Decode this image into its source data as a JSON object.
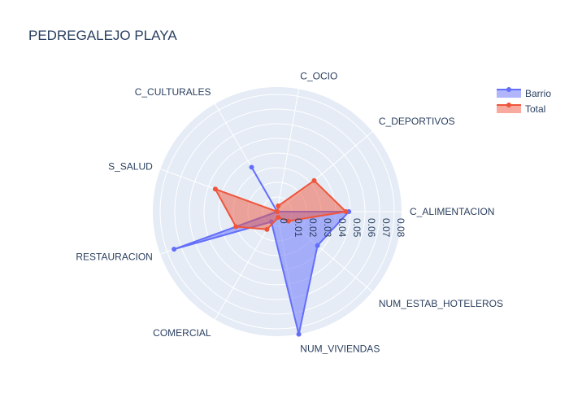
{
  "chart_data": {
    "type": "radar",
    "title": "PEDREGALEJO PLAYA",
    "axes": [
      "C_ALIMENTACION",
      "C_DEPORTIVOS",
      "C_OCIO",
      "C_CULTURALES",
      "S_SALUD",
      "RESTAURACION",
      "COMERCIAL",
      "NUM_VIVIENDAS",
      "NUM_ESTAB_HOTELEROS"
    ],
    "radial_ticks": [
      0,
      0.01,
      0.02,
      0.03,
      0.04,
      0.05,
      0.06,
      0.07,
      0.08
    ],
    "radial_tick_labels": [
      "0",
      "0.01",
      "0.02",
      "0.03",
      "0.04",
      "0.05",
      "0.06",
      "0.07",
      "0.08"
    ],
    "radial_range": [
      0,
      0.085
    ],
    "legend_position": "top-right",
    "series": [
      {
        "name": "Barrio",
        "color": "#636efa",
        "values": [
          0.049,
          0.0,
          0.0,
          0.035,
          0.0,
          0.075,
          0.008,
          0.085,
          0.036
        ]
      },
      {
        "name": "Total",
        "color": "#ef553b",
        "values": [
          0.047,
          0.033,
          0.004,
          0.0,
          0.045,
          0.03,
          0.014,
          0.004,
          0.01
        ]
      }
    ]
  }
}
